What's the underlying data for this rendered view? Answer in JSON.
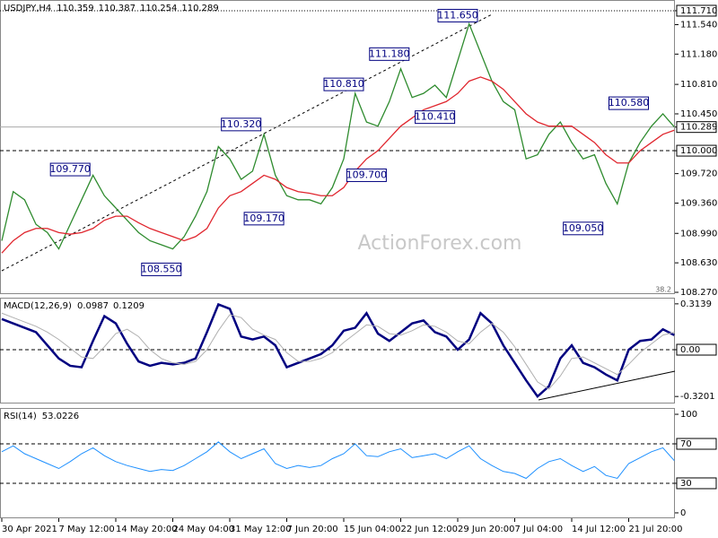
{
  "chart_data": [
    {
      "type": "line",
      "title": "USDJPY,H4",
      "ohlc": [
        110.359,
        110.387,
        110.254,
        110.289
      ],
      "ylim": [
        108.248,
        111.841
      ],
      "yticks": [
        {
          "value": 111.71,
          "label": "111.710",
          "line": "dot"
        },
        {
          "value": 111.54,
          "label": "111.540"
        },
        {
          "value": 111.18,
          "label": "111.180"
        },
        {
          "value": 110.81,
          "label": "110.810"
        },
        {
          "value": 110.45,
          "label": "110.450"
        },
        {
          "value": 110.289,
          "label": "110.289",
          "line": "solid"
        },
        {
          "value": 110,
          "label": "110.000",
          "line": "dash"
        },
        {
          "value": 109.72,
          "label": "109.720"
        },
        {
          "value": 109.36,
          "label": "109.360"
        },
        {
          "value": 108.99,
          "label": "108.990"
        },
        {
          "value": 108.63,
          "label": "108.630"
        },
        {
          "value": 108.27,
          "label": "108.270"
        }
      ],
      "series": [
        {
          "name": "USDJPY",
          "color": "#2e8b2e",
          "values": [
            108.9,
            109.5,
            109.4,
            109.1,
            109.0,
            108.8,
            109.1,
            109.4,
            109.7,
            109.45,
            109.3,
            109.15,
            109.0,
            108.9,
            108.85,
            108.8,
            108.95,
            109.2,
            109.5,
            110.05,
            109.9,
            109.65,
            109.75,
            110.2,
            109.7,
            109.45,
            109.4,
            109.4,
            109.35,
            109.55,
            109.9,
            110.7,
            110.35,
            110.3,
            110.6,
            111.0,
            110.65,
            110.7,
            110.8,
            110.65,
            111.1,
            111.55,
            111.2,
            110.85,
            110.6,
            110.5,
            109.9,
            109.95,
            110.2,
            110.35,
            110.1,
            109.9,
            109.95,
            109.6,
            109.35,
            109.85,
            110.1,
            110.3,
            110.45,
            110.29
          ]
        },
        {
          "name": "MA",
          "color": "#e0262e",
          "values": [
            108.75,
            108.9,
            109.0,
            109.05,
            109.05,
            109.0,
            108.98,
            109.0,
            109.05,
            109.15,
            109.2,
            109.2,
            109.12,
            109.05,
            109.0,
            108.95,
            108.9,
            108.95,
            109.05,
            109.3,
            109.45,
            109.5,
            109.6,
            109.7,
            109.65,
            109.55,
            109.5,
            109.48,
            109.45,
            109.45,
            109.55,
            109.75,
            109.9,
            110.0,
            110.15,
            110.3,
            110.4,
            110.5,
            110.55,
            110.6,
            110.7,
            110.85,
            110.9,
            110.85,
            110.75,
            110.6,
            110.45,
            110.35,
            110.3,
            110.3,
            110.3,
            110.2,
            110.1,
            109.95,
            109.85,
            109.85,
            110.0,
            110.1,
            110.2,
            110.25
          ]
        }
      ],
      "annotations": [
        {
          "label": "109.770",
          "value": 109.77,
          "at": 6
        },
        {
          "label": "110.320",
          "value": 110.32,
          "at": 21
        },
        {
          "label": "110.810",
          "value": 110.81,
          "at": 30
        },
        {
          "label": "111.180",
          "value": 111.18,
          "at": 34
        },
        {
          "label": "111.650",
          "value": 111.65,
          "at": 40
        },
        {
          "label": "110.410",
          "value": 110.41,
          "at": 38
        },
        {
          "label": "109.700",
          "value": 109.7,
          "at": 32
        },
        {
          "label": "109.170",
          "value": 109.17,
          "at": 23
        },
        {
          "label": "108.550",
          "value": 108.55,
          "at": 14
        },
        {
          "label": "110.580",
          "value": 110.58,
          "at": 55
        },
        {
          "label": "109.050",
          "value": 109.05,
          "at": 51
        }
      ],
      "fib_label": "38.2",
      "watermark": "ActionForex.com"
    },
    {
      "type": "line",
      "title": "MACD(12,26,9)",
      "readout": [
        0.0987,
        0.1209
      ],
      "ylim": [
        -0.362,
        0.356
      ],
      "yticks": [
        0.3139,
        {
          "value": 0,
          "label": "0.00",
          "line": "dash"
        },
        -0.3201
      ],
      "series": [
        {
          "name": "MACD",
          "color": "#000080",
          "width": 2.5,
          "values": [
            0.21,
            0.18,
            0.15,
            0.12,
            0.03,
            -0.06,
            -0.11,
            -0.12,
            0.06,
            0.23,
            0.18,
            0.04,
            -0.08,
            -0.11,
            -0.09,
            -0.1,
            -0.09,
            -0.06,
            0.12,
            0.31,
            0.28,
            0.09,
            0.07,
            0.09,
            0.03,
            -0.12,
            -0.09,
            -0.06,
            -0.03,
            0.03,
            0.13,
            0.15,
            0.25,
            0.11,
            0.06,
            0.12,
            0.18,
            0.2,
            0.12,
            0.09,
            0.0,
            0.07,
            0.25,
            0.18,
            0.03,
            -0.09,
            -0.21,
            -0.32,
            -0.25,
            -0.06,
            0.03,
            -0.09,
            -0.12,
            -0.17,
            -0.21,
            0.0,
            0.06,
            0.07,
            0.14,
            0.1
          ]
        },
        {
          "name": "Signal",
          "color": "#b0b0b0",
          "width": 1,
          "values": [
            0.25,
            0.22,
            0.19,
            0.16,
            0.12,
            0.07,
            0.01,
            -0.05,
            -0.06,
            0.02,
            0.11,
            0.14,
            0.09,
            0.0,
            -0.06,
            -0.09,
            -0.1,
            -0.08,
            0.0,
            0.13,
            0.24,
            0.22,
            0.14,
            0.1,
            0.07,
            -0.02,
            -0.08,
            -0.08,
            -0.06,
            -0.02,
            0.05,
            0.11,
            0.17,
            0.16,
            0.11,
            0.1,
            0.13,
            0.17,
            0.16,
            0.12,
            0.06,
            0.04,
            0.12,
            0.18,
            0.12,
            0.02,
            -0.1,
            -0.22,
            -0.27,
            -0.18,
            -0.06,
            -0.05,
            -0.09,
            -0.13,
            -0.17,
            -0.1,
            -0.02,
            0.04,
            0.1,
            0.12
          ]
        }
      ]
    },
    {
      "type": "line",
      "title": "RSI(14)",
      "readout": [
        53.0226
      ],
      "ylim": [
        -5.5,
        106.4
      ],
      "yticks": [
        100,
        {
          "value": 70,
          "label": "70",
          "line": "dash"
        },
        {
          "value": 30,
          "label": "30",
          "line": "dash"
        },
        0
      ],
      "series": [
        {
          "name": "RSI",
          "color": "#1e90ff",
          "width": 1,
          "values": [
            62,
            68,
            60,
            55,
            50,
            45,
            52,
            60,
            66,
            58,
            52,
            48,
            45,
            42,
            44,
            43,
            48,
            55,
            62,
            72,
            62,
            55,
            60,
            65,
            50,
            45,
            48,
            46,
            48,
            55,
            60,
            70,
            58,
            57,
            62,
            65,
            56,
            58,
            60,
            55,
            62,
            68,
            55,
            48,
            42,
            40,
            35,
            45,
            52,
            55,
            48,
            42,
            47,
            38,
            35,
            50,
            56,
            62,
            66,
            53
          ]
        }
      ],
      "categories": [
        "30 Apr 2021",
        null,
        null,
        null,
        null,
        "7 May 12:00",
        null,
        null,
        null,
        null,
        "14 May 20:00",
        null,
        null,
        null,
        null,
        "24 May 04:00",
        null,
        null,
        null,
        null,
        "31 May 12:00",
        null,
        null,
        null,
        null,
        "7 Jun 20:00",
        null,
        null,
        null,
        null,
        "15 Jun 04:00",
        null,
        null,
        null,
        null,
        "22 Jun 12:00",
        null,
        null,
        null,
        null,
        "29 Jun 20:00",
        null,
        null,
        null,
        null,
        "7 Jul 04:00",
        null,
        null,
        null,
        null,
        "14 Jul 12:00",
        null,
        null,
        null,
        null,
        "21 Jul 20:00",
        null,
        null,
        null,
        null
      ]
    }
  ]
}
